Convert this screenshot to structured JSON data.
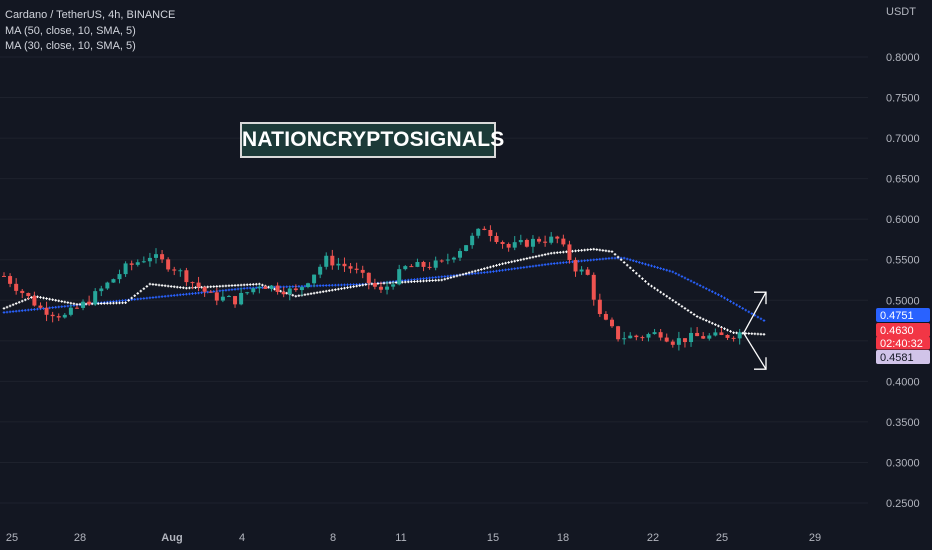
{
  "header": {
    "symbol": "Cardano / TetherUS, 4h, BINANCE",
    "indicators": [
      "MA (50, close, 10, SMA, 5)",
      "MA (30, close, 10, SMA, 5)"
    ]
  },
  "watermark": "NATIONCRYPTOSIGNALS",
  "colors": {
    "background": "#131722",
    "up": "#26a69a",
    "down": "#ef5350",
    "ma50": "#2962ff",
    "ma30": "#ffffff",
    "axis_text": "#b2b5be"
  },
  "price_axis": {
    "currency": "USDT",
    "ticks": [
      "0.8000",
      "0.7500",
      "0.7000",
      "0.6500",
      "0.6000",
      "0.5500",
      "0.5000",
      "0.4500",
      "0.4000",
      "0.3500",
      "0.3000",
      "0.2500"
    ]
  },
  "price_badges": {
    "ma50": {
      "label": "0.4751",
      "value": 0.4751,
      "color": "#2962ff",
      "text_color": "#ffffff"
    },
    "last": {
      "label": "0.4630",
      "value": 0.463,
      "color": "#f23645",
      "text_color": "#ffffff"
    },
    "countdown": {
      "label": "02:40:32",
      "color": "#f23645",
      "text_color": "#ffffff"
    },
    "ma30": {
      "label": "0.4581",
      "value": 0.4581,
      "color": "#d1c4e9",
      "text_color": "#131722"
    }
  },
  "time_axis": {
    "labels": [
      "25",
      "28",
      "Aug",
      "4",
      "8",
      "11",
      "15",
      "18",
      "22",
      "25",
      "29"
    ]
  },
  "chart_data": {
    "type": "candlestick",
    "symbol": "ADAUSDT",
    "interval": "4h",
    "y_range": [
      0.23,
      0.85
    ],
    "candles": [],
    "anchors": [
      [
        0,
        0.53
      ],
      [
        6,
        0.49
      ],
      [
        10,
        0.48
      ],
      [
        14,
        0.5
      ],
      [
        20,
        0.54
      ],
      [
        24,
        0.555
      ],
      [
        28,
        0.54
      ],
      [
        34,
        0.505
      ],
      [
        38,
        0.5
      ],
      [
        42,
        0.52
      ],
      [
        48,
        0.51
      ],
      [
        53,
        0.55
      ],
      [
        57,
        0.54
      ],
      [
        62,
        0.51
      ],
      [
        66,
        0.54
      ],
      [
        72,
        0.545
      ],
      [
        76,
        0.57
      ],
      [
        79,
        0.59
      ],
      [
        83,
        0.565
      ],
      [
        88,
        0.575
      ],
      [
        91,
        0.575
      ],
      [
        94,
        0.54
      ],
      [
        96,
        0.53
      ],
      [
        98,
        0.48
      ],
      [
        101,
        0.455
      ],
      [
        104,
        0.455
      ],
      [
        108,
        0.46
      ],
      [
        110,
        0.45
      ],
      [
        114,
        0.455
      ],
      [
        118,
        0.455
      ],
      [
        121,
        0.46
      ]
    ],
    "ma50": [
      [
        0,
        0.485
      ],
      [
        20,
        0.5
      ],
      [
        40,
        0.515
      ],
      [
        60,
        0.52
      ],
      [
        80,
        0.535
      ],
      [
        90,
        0.545
      ],
      [
        100,
        0.552
      ],
      [
        102,
        0.552
      ],
      [
        110,
        0.535
      ],
      [
        118,
        0.505
      ],
      [
        125,
        0.475
      ]
    ],
    "ma30": [
      [
        0,
        0.49
      ],
      [
        5,
        0.505
      ],
      [
        12,
        0.495
      ],
      [
        20,
        0.497
      ],
      [
        24,
        0.52
      ],
      [
        30,
        0.515
      ],
      [
        42,
        0.52
      ],
      [
        48,
        0.505
      ],
      [
        60,
        0.52
      ],
      [
        72,
        0.525
      ],
      [
        82,
        0.545
      ],
      [
        90,
        0.558
      ],
      [
        97,
        0.563
      ],
      [
        100,
        0.56
      ],
      [
        106,
        0.52
      ],
      [
        114,
        0.48
      ],
      [
        120,
        0.46
      ],
      [
        125,
        0.458
      ]
    ],
    "projections": {
      "up_arrow_to": 0.51,
      "down_arrow_to": 0.415
    }
  }
}
